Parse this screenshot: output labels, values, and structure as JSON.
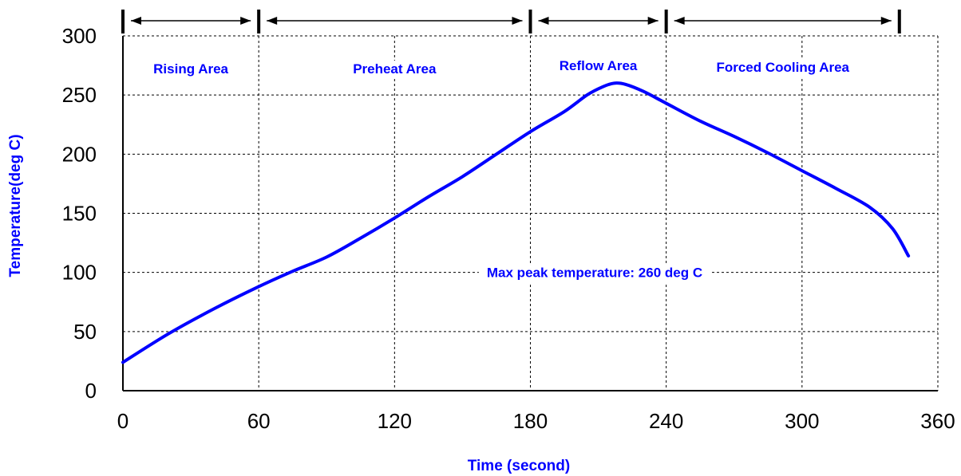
{
  "chart_data": {
    "type": "line",
    "title": "",
    "xlabel": "Time (second)",
    "ylabel": "Temperature(deg C)",
    "xlim": [
      0,
      360
    ],
    "ylim": [
      0,
      300
    ],
    "x_ticks": [
      0,
      60,
      120,
      180,
      240,
      300,
      360
    ],
    "y_ticks": [
      0,
      50,
      100,
      150,
      200,
      250,
      300
    ],
    "grid": true,
    "zones": [
      {
        "label": "Rising Area",
        "start": 0,
        "end": 60
      },
      {
        "label": "Preheat Area",
        "start": 60,
        "end": 180
      },
      {
        "label": "Reflow Area",
        "start": 180,
        "end": 240
      },
      {
        "label": "Forced Cooling Area",
        "start": 240,
        "end": 343
      }
    ],
    "annotation": "Max peak temperature: 260 deg C",
    "series": [
      {
        "color": "#0000ff",
        "points": [
          [
            0,
            24
          ],
          [
            20,
            48
          ],
          [
            40,
            69
          ],
          [
            60,
            88
          ],
          [
            75,
            101
          ],
          [
            90,
            113
          ],
          [
            105,
            129
          ],
          [
            120,
            146
          ],
          [
            135,
            164
          ],
          [
            150,
            181
          ],
          [
            165,
            200
          ],
          [
            180,
            219
          ],
          [
            195,
            236
          ],
          [
            205,
            250
          ],
          [
            212,
            257
          ],
          [
            217,
            260
          ],
          [
            222,
            259
          ],
          [
            230,
            253
          ],
          [
            240,
            243
          ],
          [
            255,
            228
          ],
          [
            270,
            215
          ],
          [
            285,
            201
          ],
          [
            300,
            186
          ],
          [
            315,
            171
          ],
          [
            330,
            155
          ],
          [
            340,
            137
          ],
          [
            347,
            114
          ]
        ]
      }
    ]
  }
}
